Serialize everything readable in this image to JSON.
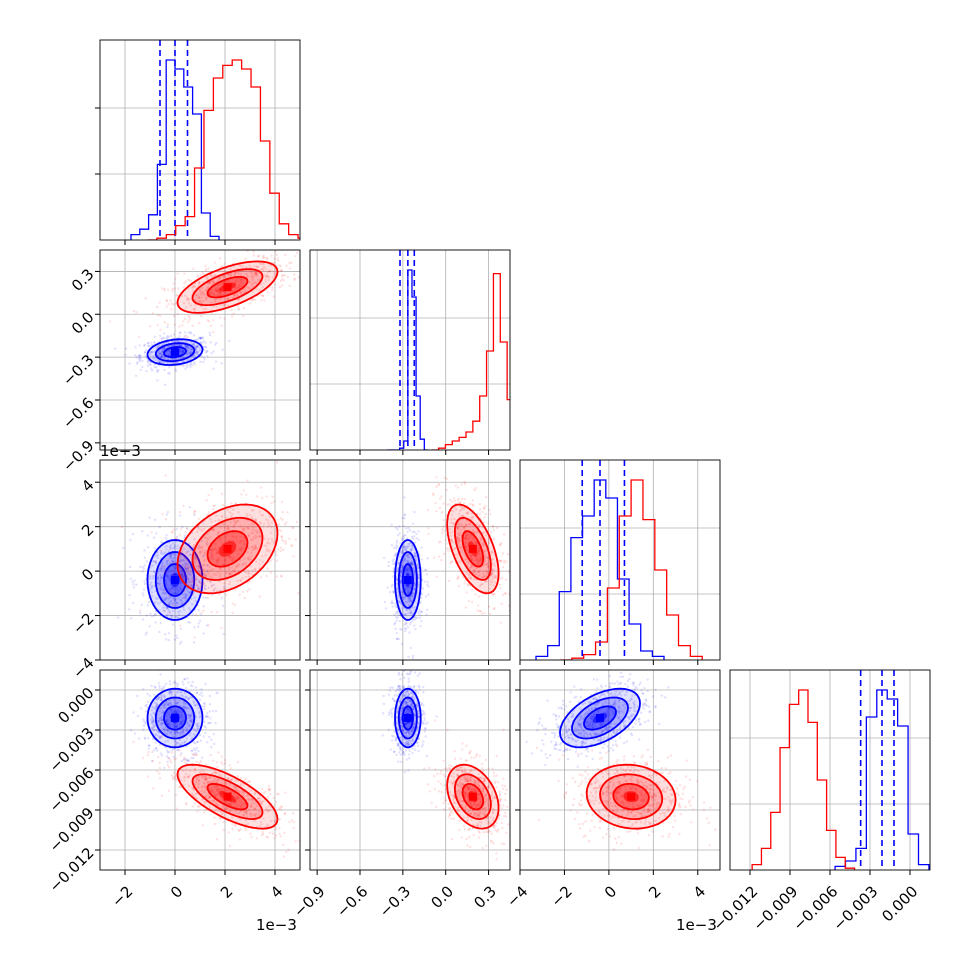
{
  "chart_data": {
    "type": "corner",
    "description_free": true,
    "parameters": 4,
    "grid": true,
    "colors": {
      "series_a": "#0000ff",
      "series_b": "#ff0000"
    },
    "axis_ranges": [
      [
        -0.003,
        0.005
      ],
      [
        -0.95,
        0.45
      ],
      [
        -0.004,
        0.005
      ],
      [
        -0.0135,
        0.0015
      ]
    ],
    "tick_labels": {
      "p1": [
        "−2",
        "0",
        "2",
        "4"
      ],
      "p2": [
        "−0.9",
        "−0.6",
        "−0.3",
        "0.0",
        "0.3"
      ],
      "p3": [
        "−4",
        "−2",
        "0",
        "2",
        "4"
      ],
      "p4": [
        "−0.012",
        "−0.009",
        "−0.006",
        "−0.003",
        "0.000"
      ]
    },
    "offset_labels": {
      "p1_x": "1e−3",
      "p3_y": "1e−3",
      "p3_x": "1e−3"
    },
    "series": [
      {
        "color": "#0000ff",
        "median": [
          0.0,
          -0.265,
          -0.0004,
          -0.0021
        ],
        "quantile_16": [
          -0.0006,
          -0.32,
          -0.0012,
          -0.0037
        ],
        "quantile_84": [
          0.0005,
          -0.22,
          0.0007,
          -0.0012
        ],
        "std": [
          0.00055,
          0.045,
          0.0009,
          0.0011
        ],
        "correlations": {
          "p1_p2": 0.2,
          "p1_p3": 0.0,
          "p1_p4": 0.0,
          "p2_p3": 0.0,
          "p2_p4": 0.0,
          "p3_p4": 0.5
        },
        "hist_1d": {
          "p1": [
            0.03,
            0.06,
            0.14,
            0.42,
            1.0,
            0.95,
            0.85,
            0.7,
            0.15,
            0.02
          ],
          "p2": [
            0.0,
            0.0,
            0.0,
            0.01,
            0.05,
            1.0,
            0.85,
            0.3,
            0.06,
            0.0
          ],
          "p3": [
            0.02,
            0.08,
            0.38,
            0.68,
            0.8,
            1.0,
            0.9,
            0.45,
            0.2,
            0.05,
            0.02
          ],
          "p4": [
            0.02,
            0.05,
            0.12,
            0.85,
            1.0,
            0.95,
            0.8,
            0.2,
            0.03
          ]
        }
      },
      {
        "color": "#ff0000",
        "median": [
          0.0021,
          0.19,
          0.001,
          -0.008
        ],
        "quantile_16": [
          0.0011,
          0.06,
          0.0,
          -0.0092
        ],
        "quantile_84": [
          0.0031,
          0.28,
          0.002,
          -0.0068
        ],
        "std": [
          0.001,
          0.09,
          0.001,
          0.0012
        ],
        "correlations": {
          "p1_p2": 0.6,
          "p1_p3": 0.35,
          "p1_p4": -0.7,
          "p2_p3": -0.55,
          "p2_p4": -0.35,
          "p3_p4": -0.1
        },
        "hist_1d": {
          "p1": [
            0.0,
            0.01,
            0.03,
            0.08,
            0.13,
            0.4,
            0.72,
            0.9,
            0.97,
            1.0,
            0.95,
            0.85,
            0.55,
            0.26,
            0.09,
            0.03,
            0.01
          ],
          "p2": [
            0.0,
            0.01,
            0.03,
            0.05,
            0.07,
            0.1,
            0.16,
            0.3,
            0.55,
            0.98,
            0.6,
            0.28
          ],
          "p3": [
            0.0,
            0.01,
            0.03,
            0.1,
            0.4,
            0.8,
            1.0,
            0.78,
            0.5,
            0.25,
            0.08,
            0.02
          ],
          "p4": [
            0.03,
            0.12,
            0.32,
            0.68,
            0.92,
            1.0,
            0.82,
            0.5,
            0.22,
            0.07,
            0.01
          ]
        }
      }
    ]
  }
}
